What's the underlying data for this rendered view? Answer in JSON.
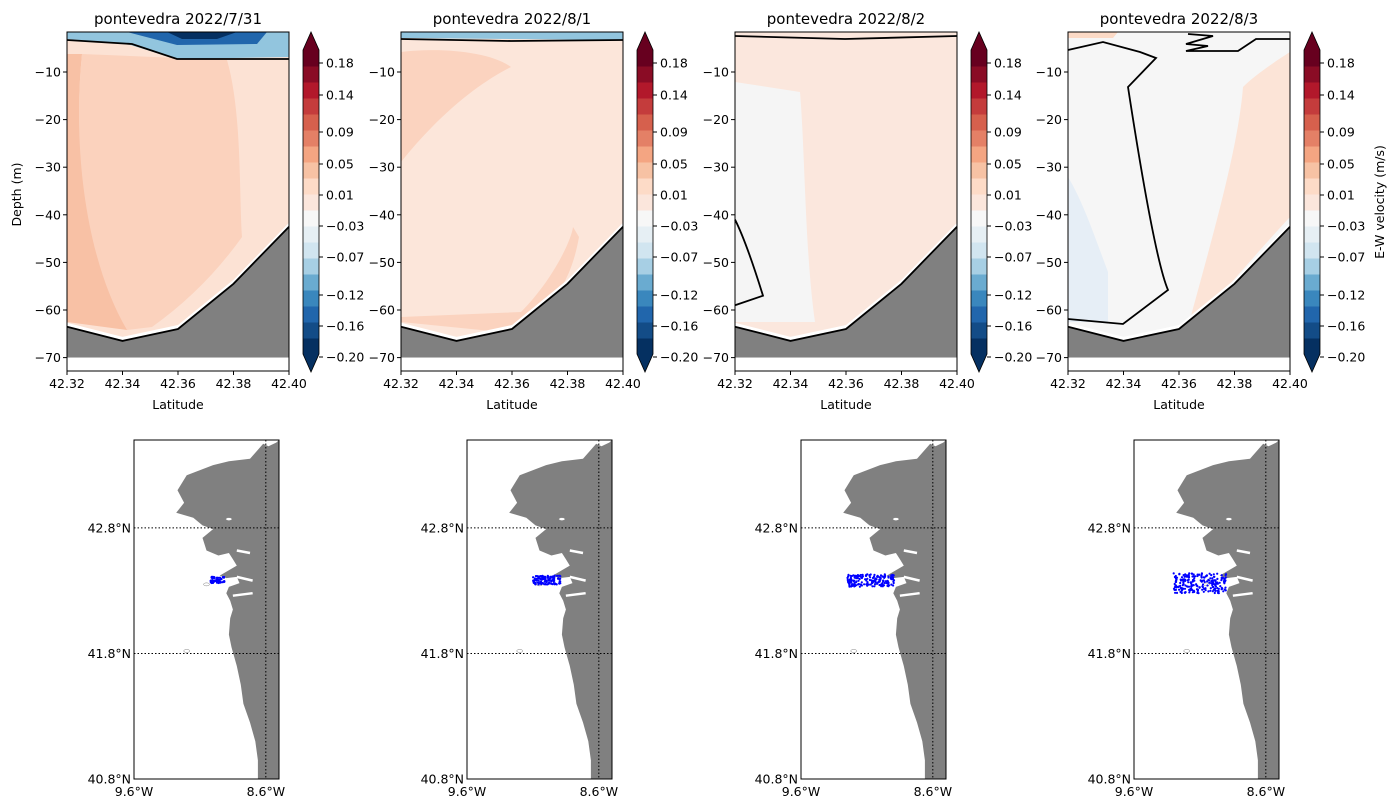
{
  "chart_data": [
    {
      "type": "contourf",
      "title": "pontevedra 2022/7/31",
      "xlabel": "Latitude",
      "ylabel": "Depth (m)",
      "xlim": [
        42.32,
        42.4
      ],
      "ylim": [
        -73,
        -2
      ],
      "xticks": [
        "42.32",
        "42.34",
        "42.36",
        "42.38",
        "42.40"
      ],
      "yticks": [
        "−10",
        "−20",
        "−30",
        "−40",
        "−50",
        "−60",
        "−70"
      ],
      "colorbar": {
        "ticks": [
          "0.18",
          "0.14",
          "0.09",
          "0.05",
          "0.01",
          "−0.03",
          "−0.07",
          "−0.12",
          "−0.16",
          "−0.20"
        ],
        "label": ""
      },
      "bathymetry": {
        "lat": [
          42.32,
          42.34,
          42.36,
          42.38,
          42.4
        ],
        "depth": [
          -63.5,
          -66.5,
          -64,
          -54.5,
          -42.5
        ]
      },
      "zero_contour": "near surface, from -3 m at 42.32 to -7 m at 42.40",
      "dominant_velocity_ms": 0.03
    },
    {
      "type": "contourf",
      "title": "pontevedra 2022/8/1",
      "xlabel": "Latitude",
      "ylabel": "",
      "xlim": [
        42.32,
        42.4
      ],
      "ylim": [
        -73,
        -2
      ],
      "xticks": [
        "42.32",
        "42.34",
        "42.36",
        "42.38",
        "42.40"
      ],
      "yticks": [
        "−10",
        "−20",
        "−30",
        "−40",
        "−50",
        "−60",
        "−70"
      ],
      "colorbar": {
        "ticks": [
          "0.18",
          "0.14",
          "0.09",
          "0.05",
          "0.01",
          "−0.03",
          "−0.07",
          "−0.12",
          "−0.16",
          "−0.20"
        ],
        "label": ""
      },
      "bathymetry": {
        "lat": [
          42.32,
          42.34,
          42.36,
          42.38,
          42.4
        ],
        "depth": [
          -63.5,
          -66.5,
          -64,
          -54.5,
          -42.5
        ]
      },
      "zero_contour": "near surface, about -3 m",
      "dominant_velocity_ms": 0.02
    },
    {
      "type": "contourf",
      "title": "pontevedra 2022/8/2",
      "xlabel": "Latitude",
      "ylabel": "",
      "xlim": [
        42.32,
        42.4
      ],
      "ylim": [
        -73,
        -2
      ],
      "xticks": [
        "42.32",
        "42.34",
        "42.36",
        "42.38",
        "42.40"
      ],
      "yticks": [
        "−10",
        "−20",
        "−30",
        "−40",
        "−50",
        "−60",
        "−70"
      ],
      "colorbar": {
        "ticks": [
          "0.18",
          "0.14",
          "0.09",
          "0.05",
          "0.01",
          "−0.03",
          "−0.07",
          "−0.12",
          "−0.16",
          "−0.20"
        ],
        "label": ""
      },
      "bathymetry": {
        "lat": [
          42.32,
          42.34,
          42.36,
          42.38,
          42.4
        ],
        "depth": [
          -63.5,
          -66.5,
          -64,
          -54.5,
          -42.5
        ]
      },
      "zero_contour": "near surface and a closed region near 42.32 between -41 and -59 m",
      "dominant_velocity_ms": 0.01
    },
    {
      "type": "contourf",
      "title": "pontevedra 2022/8/3",
      "xlabel": "Latitude",
      "ylabel": "",
      "xlim": [
        42.32,
        42.4
      ],
      "ylim": [
        -73,
        -2
      ],
      "xticks": [
        "42.32",
        "42.34",
        "42.36",
        "42.38",
        "42.40"
      ],
      "yticks": [
        "−10",
        "−20",
        "−30",
        "−40",
        "−50",
        "−60",
        "−70"
      ],
      "colorbar": {
        "ticks": [
          "0.18",
          "0.14",
          "0.09",
          "0.05",
          "0.01",
          "−0.03",
          "−0.07",
          "−0.12",
          "−0.16",
          "−0.20"
        ],
        "label": "E-W velocity (m/s)"
      },
      "bathymetry": {
        "lat": [
          42.32,
          42.34,
          42.36,
          42.38,
          42.4
        ],
        "depth": [
          -63.5,
          -66.5,
          -64,
          -54.5,
          -42.5
        ]
      },
      "zero_contour": "column-shaped region bounded near 42.34–42.355 from surface to -63 m",
      "dominant_velocity_ms": 0.0
    },
    {
      "type": "scatter",
      "title": "",
      "xlim": [
        -9.6,
        -8.5
      ],
      "ylim": [
        40.8,
        43.5
      ],
      "xticks": [
        "9.6°W",
        "8.6°W"
      ],
      "yticks": [
        "42.8°N",
        "41.8°N",
        "40.8°N"
      ],
      "particles": {
        "lon_range": [
          -9.02,
          -8.91
        ],
        "lat_range": [
          42.36,
          42.41
        ]
      }
    },
    {
      "type": "scatter",
      "title": "",
      "xlim": [
        -9.6,
        -8.5
      ],
      "ylim": [
        40.8,
        43.5
      ],
      "xticks": [
        "9.6°W",
        "8.6°W"
      ],
      "yticks": [
        "42.8°N",
        "41.8°N",
        "40.8°N"
      ],
      "particles": {
        "lon_range": [
          -9.1,
          -8.89
        ],
        "lat_range": [
          42.35,
          42.42
        ]
      }
    },
    {
      "type": "scatter",
      "title": "",
      "xlim": [
        -9.6,
        -8.5
      ],
      "ylim": [
        40.8,
        43.5
      ],
      "xticks": [
        "9.6°W",
        "8.6°W"
      ],
      "yticks": [
        "42.8°N",
        "41.8°N",
        "40.8°N"
      ],
      "particles": {
        "lon_range": [
          -9.25,
          -8.89
        ],
        "lat_range": [
          42.33,
          42.43
        ]
      }
    },
    {
      "type": "scatter",
      "title": "",
      "xlim": [
        -9.6,
        -8.5
      ],
      "ylim": [
        40.8,
        43.5
      ],
      "xticks": [
        "9.6°W",
        "8.6°W"
      ],
      "yticks": [
        "42.8°N",
        "41.8°N",
        "40.8°N"
      ],
      "particles": {
        "lon_range": [
          -9.3,
          -8.9
        ],
        "lat_range": [
          42.28,
          42.44
        ]
      }
    }
  ],
  "colors": {
    "land": "#808080",
    "particles": "#0000ff",
    "colormap": [
      "#053061",
      "#2166ac",
      "#4393c3",
      "#92c5de",
      "#d1e5f0",
      "#f7f7f7",
      "#fddbc7",
      "#f4a582",
      "#d6604d",
      "#b2182b",
      "#67001f"
    ]
  }
}
